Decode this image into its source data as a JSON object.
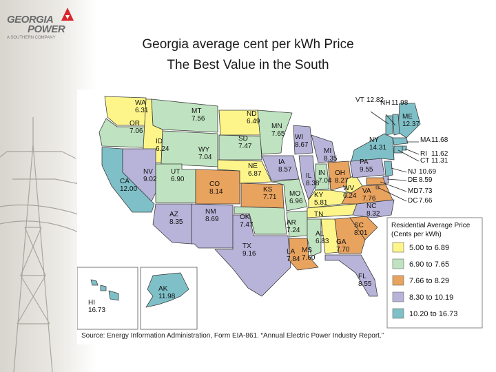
{
  "logo": {
    "line1": "GEORGIA",
    "line2": "POWER",
    "line3": "A SOUTHERN COMPANY"
  },
  "title": {
    "line1": "Georgia average cent per kWh Price",
    "line2": "The Best Value in the South"
  },
  "legend": {
    "title_line1": "Residential Average Price",
    "title_line2": "(Cents per kWh)",
    "items": [
      {
        "label": "5.00 to 6.89",
        "color": "#fdf58a"
      },
      {
        "label": "6.90 to 7.65",
        "color": "#bfe3c0"
      },
      {
        "label": "7.66 to 8.29",
        "color": "#e8a35e"
      },
      {
        "label": "8.30 to 10.19",
        "color": "#b7b3d9"
      },
      {
        "label": "10.20 to 16.73",
        "color": "#7fc0c8"
      }
    ]
  },
  "states": [
    {
      "abbr": "WA",
      "value": "6.31"
    },
    {
      "abbr": "OR",
      "value": "7.06"
    },
    {
      "abbr": "CA",
      "value": "12.00"
    },
    {
      "abbr": "ID",
      "value": "6.24"
    },
    {
      "abbr": "NV",
      "value": "9.02"
    },
    {
      "abbr": "MT",
      "value": "7.56"
    },
    {
      "abbr": "WY",
      "value": "7.04"
    },
    {
      "abbr": "UT",
      "value": "6.90"
    },
    {
      "abbr": "AZ",
      "value": "8.35"
    },
    {
      "abbr": "CO",
      "value": "8.14"
    },
    {
      "abbr": "NM",
      "value": "8.69"
    },
    {
      "abbr": "ND",
      "value": "6.49"
    },
    {
      "abbr": "SD",
      "value": "7.47"
    },
    {
      "abbr": "NE",
      "value": "6.87"
    },
    {
      "abbr": "KS",
      "value": "7.71"
    },
    {
      "abbr": "OK",
      "value": "7.47"
    },
    {
      "abbr": "TX",
      "value": "9.16"
    },
    {
      "abbr": "MN",
      "value": "7.65"
    },
    {
      "abbr": "IA",
      "value": "8.57"
    },
    {
      "abbr": "MO",
      "value": "6.96"
    },
    {
      "abbr": "AR",
      "value": "7.24"
    },
    {
      "abbr": "LA",
      "value": "7.84"
    },
    {
      "abbr": "WI",
      "value": "8.67"
    },
    {
      "abbr": "IL",
      "value": "8.38"
    },
    {
      "abbr": "MI",
      "value": "8.35"
    },
    {
      "abbr": "IN",
      "value": "7.04"
    },
    {
      "abbr": "OH",
      "value": "8.27"
    },
    {
      "abbr": "KY",
      "value": "5.81"
    },
    {
      "abbr": "TN",
      "value": ""
    },
    {
      "abbr": "MS",
      "value": "7.60"
    },
    {
      "abbr": "AL",
      "value": "6.83"
    },
    {
      "abbr": "GA",
      "value": "7.70"
    },
    {
      "abbr": "FL",
      "value": "8.55"
    },
    {
      "abbr": "SC",
      "value": "8.01"
    },
    {
      "abbr": "NC",
      "value": "8.32"
    },
    {
      "abbr": "VA",
      "value": "7.76"
    },
    {
      "abbr": "WV",
      "value": "6.24"
    },
    {
      "abbr": "PA",
      "value": "9.55"
    },
    {
      "abbr": "NY",
      "value": "14.31"
    },
    {
      "abbr": "ME",
      "value": "12.37"
    },
    {
      "abbr": "VT",
      "value": "12.82"
    },
    {
      "abbr": "NH",
      "value": "11.98"
    },
    {
      "abbr": "MA",
      "value": "11.68"
    },
    {
      "abbr": "RI",
      "value": "11.62"
    },
    {
      "abbr": "CT",
      "value": "11.31"
    },
    {
      "abbr": "NJ",
      "value": "10.69"
    },
    {
      "abbr": "DE",
      "value": "8.59"
    },
    {
      "abbr": "MD",
      "value": "7.73"
    },
    {
      "abbr": "DC",
      "value": "7.66"
    },
    {
      "abbr": "HI",
      "value": "16.73"
    },
    {
      "abbr": "AK",
      "value": "11.98"
    }
  ],
  "source": "Source: Energy Information Administration, Form EIA-861. “Annual Electric Power Industry Report.”"
}
